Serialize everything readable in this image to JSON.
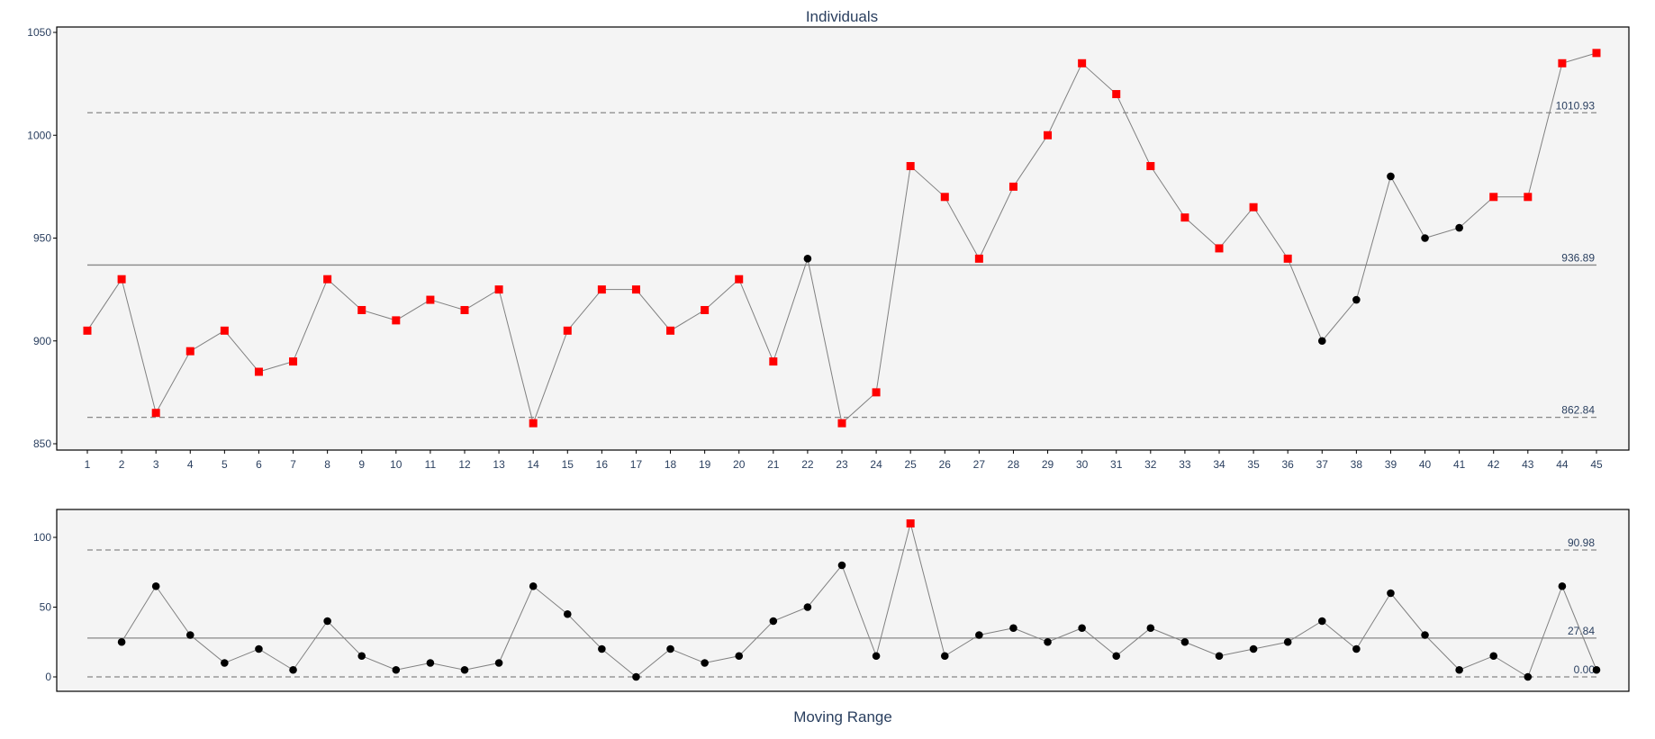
{
  "chart_data": [
    {
      "type": "line",
      "title": "Individuals",
      "x": [
        1,
        2,
        3,
        4,
        5,
        6,
        7,
        8,
        9,
        10,
        11,
        12,
        13,
        14,
        15,
        16,
        17,
        18,
        19,
        20,
        21,
        22,
        23,
        24,
        25,
        26,
        27,
        28,
        29,
        30,
        31,
        32,
        33,
        34,
        35,
        36,
        37,
        38,
        39,
        40,
        41,
        42,
        43,
        44,
        45
      ],
      "values": [
        905,
        930,
        865,
        895,
        905,
        885,
        890,
        930,
        915,
        910,
        920,
        915,
        925,
        860,
        905,
        925,
        925,
        905,
        915,
        930,
        890,
        940,
        860,
        875,
        985,
        970,
        940,
        975,
        1000,
        1035,
        1020,
        985,
        960,
        945,
        965,
        940,
        900,
        920,
        980,
        950,
        955,
        970,
        970,
        1035,
        1040
      ],
      "flagged": [
        1,
        1,
        1,
        1,
        1,
        1,
        1,
        1,
        1,
        1,
        1,
        1,
        1,
        1,
        1,
        1,
        1,
        1,
        1,
        1,
        1,
        0,
        1,
        1,
        1,
        1,
        1,
        1,
        1,
        1,
        1,
        1,
        1,
        1,
        1,
        1,
        0,
        0,
        0,
        0,
        0,
        1,
        1,
        1,
        1
      ],
      "ylim": [
        848,
        1052
      ],
      "yticks": [
        850,
        900,
        950,
        1000,
        1050
      ],
      "ucl": 1010.93,
      "center": 936.89,
      "lcl": 862.84,
      "ucl_label": "1010.93",
      "center_label": "936.89",
      "lcl_label": "862.84",
      "grid": false
    },
    {
      "type": "line",
      "title": "Moving Range",
      "x": [
        2,
        3,
        4,
        5,
        6,
        7,
        8,
        9,
        10,
        11,
        12,
        13,
        14,
        15,
        16,
        17,
        18,
        19,
        20,
        21,
        22,
        23,
        24,
        25,
        26,
        27,
        28,
        29,
        30,
        31,
        32,
        33,
        34,
        35,
        36,
        37,
        38,
        39,
        40,
        41,
        42,
        43,
        44,
        45
      ],
      "values": [
        25,
        65,
        30,
        10,
        20,
        5,
        40,
        15,
        5,
        10,
        5,
        10,
        65,
        45,
        20,
        0,
        20,
        10,
        15,
        40,
        50,
        80,
        15,
        110,
        15,
        30,
        35,
        25,
        35,
        15,
        35,
        25,
        15,
        20,
        25,
        40,
        20,
        60,
        30,
        5,
        15,
        0,
        65,
        5
      ],
      "flagged": [
        0,
        0,
        0,
        0,
        0,
        0,
        0,
        0,
        0,
        0,
        0,
        0,
        0,
        0,
        0,
        0,
        0,
        0,
        0,
        0,
        0,
        0,
        0,
        1,
        0,
        0,
        0,
        0,
        0,
        0,
        0,
        0,
        0,
        0,
        0,
        0,
        0,
        0,
        0,
        0,
        0,
        0,
        0,
        0
      ],
      "ylim": [
        -7,
        120
      ],
      "yticks": [
        0,
        50,
        100
      ],
      "ucl": 90.98,
      "center": 27.84,
      "lcl": 0,
      "ucl_label": "90.98",
      "center_label": "27.84",
      "lcl_label": "0.00",
      "grid": false
    }
  ],
  "colors": {
    "flag": "#ff0000",
    "point": "#000000",
    "line": "#808080",
    "panel": "#f4f4f4",
    "text": "#2a3f5f"
  }
}
